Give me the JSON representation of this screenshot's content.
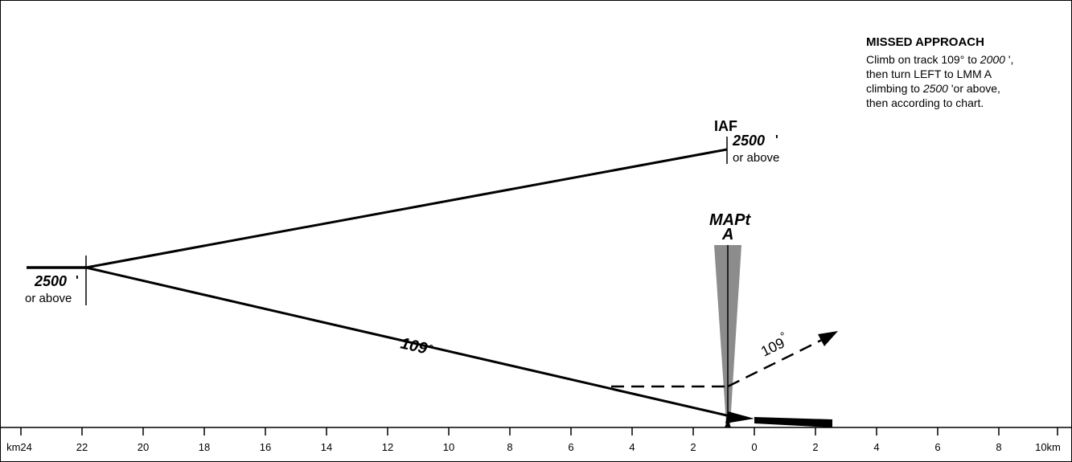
{
  "missed_approach": {
    "title": "MISSED APPROACH",
    "lines": [
      {
        "pre": "Climb on track 109° to ",
        "em": "2000",
        "post": " ',"
      },
      {
        "pre": "then turn LEFT to LMM A",
        "em": "",
        "post": ""
      },
      {
        "pre": "climbing to ",
        "em": "2500",
        "post": " 'or above,"
      },
      {
        "pre": "then according to chart.",
        "em": "",
        "post": ""
      }
    ]
  },
  "iaf": {
    "label": "IAF",
    "altitude": "2500",
    "altitude_unit": "'",
    "note": "or above"
  },
  "initial_fix": {
    "altitude": "2500",
    "altitude_unit": "'",
    "note": "or above"
  },
  "mapt": {
    "label": "MAPt",
    "sublabel": "A"
  },
  "inbound_track": {
    "value": "109",
    "unit": "°"
  },
  "missed_track": {
    "value": "109",
    "unit": "°"
  },
  "distance_scale": {
    "unit": "km",
    "left_labels": [
      "24",
      "22",
      "20",
      "18",
      "16",
      "14",
      "12",
      "10",
      "8",
      "6",
      "4",
      "2",
      "0"
    ],
    "right_labels": [
      "2",
      "4",
      "6",
      "8",
      "10"
    ]
  }
}
